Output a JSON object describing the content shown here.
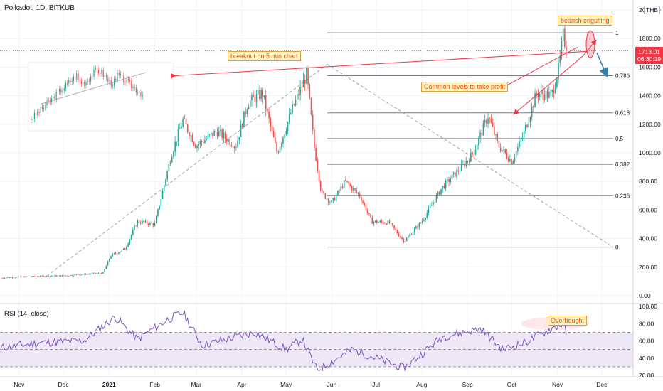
{
  "header": {
    "title": "Polkadot, 1D, BITKUB",
    "currency": "THB"
  },
  "price_tag": {
    "price": "1713.01",
    "countdown": "06:30:19"
  },
  "colors": {
    "up": "#26a69a",
    "down": "#ef5350",
    "fib_line": "#787b86",
    "rsi_line": "#7e57c2",
    "rsi_band": "#ede7f6",
    "annotation": "#f23645",
    "arrow_blue": "#2f7fa8"
  },
  "annotations": {
    "bearish_engulfing": "bearish engulfing",
    "breakout": "breakout on 5 min chart",
    "take_profit": "Common levels to take profit",
    "overbought": "Overbought"
  },
  "chart_data": [
    {
      "type": "candlestick",
      "title": "Polkadot, 1D, BITKUB",
      "x_tick_labels": [
        "Nov",
        "Dec",
        "2021",
        "Feb",
        "Mar",
        "Apr",
        "May",
        "Jun",
        "Jul",
        "Aug",
        "Sep",
        "Oct",
        "Nov",
        "Dec"
      ],
      "y_tick_labels": [
        "0.00",
        "200.00",
        "400.00",
        "600.00",
        "800.00",
        "1000.00",
        "1200.00",
        "1400.00",
        "1600.00",
        "1800.00",
        "2000.00"
      ],
      "ylim": [
        0,
        2000
      ],
      "last_price": 1713.01,
      "fib_levels": [
        {
          "ratio": "1",
          "price": 1840
        },
        {
          "ratio": "0.786",
          "price": 1540
        },
        {
          "ratio": "0.618",
          "price": 1280
        },
        {
          "ratio": "0.5",
          "price": 1100
        },
        {
          "ratio": "0.382",
          "price": 920
        },
        {
          "ratio": "0.236",
          "price": 700
        },
        {
          "ratio": "0",
          "price": 340
        }
      ],
      "close_path": [
        {
          "date": "2020-10-20",
          "close": 125
        },
        {
          "date": "2020-11-10",
          "close": 135
        },
        {
          "date": "2020-12-01",
          "close": 140
        },
        {
          "date": "2020-12-28",
          "close": 160
        },
        {
          "date": "2021-01-02",
          "close": 280
        },
        {
          "date": "2021-01-12",
          "close": 330
        },
        {
          "date": "2021-01-20",
          "close": 520
        },
        {
          "date": "2021-02-01",
          "close": 500
        },
        {
          "date": "2021-02-12",
          "close": 980
        },
        {
          "date": "2021-02-20",
          "close": 1230
        },
        {
          "date": "2021-03-01",
          "close": 1050
        },
        {
          "date": "2021-03-15",
          "close": 1150
        },
        {
          "date": "2021-03-28",
          "close": 1050
        },
        {
          "date": "2021-04-05",
          "close": 1350
        },
        {
          "date": "2021-04-15",
          "close": 1420
        },
        {
          "date": "2021-04-20",
          "close": 1200
        },
        {
          "date": "2021-04-25",
          "close": 1000
        },
        {
          "date": "2021-05-05",
          "close": 1300
        },
        {
          "date": "2021-05-15",
          "close": 1550
        },
        {
          "date": "2021-05-20",
          "close": 1050
        },
        {
          "date": "2021-05-25",
          "close": 720
        },
        {
          "date": "2021-06-01",
          "close": 650
        },
        {
          "date": "2021-06-10",
          "close": 800
        },
        {
          "date": "2021-06-20",
          "close": 700
        },
        {
          "date": "2021-06-28",
          "close": 520
        },
        {
          "date": "2021-07-10",
          "close": 510
        },
        {
          "date": "2021-07-20",
          "close": 380
        },
        {
          "date": "2021-08-01",
          "close": 520
        },
        {
          "date": "2021-08-15",
          "close": 760
        },
        {
          "date": "2021-08-28",
          "close": 900
        },
        {
          "date": "2021-09-05",
          "close": 1000
        },
        {
          "date": "2021-09-15",
          "close": 1260
        },
        {
          "date": "2021-09-22",
          "close": 1050
        },
        {
          "date": "2021-10-01",
          "close": 940
        },
        {
          "date": "2021-10-08",
          "close": 1100
        },
        {
          "date": "2021-10-18",
          "close": 1420
        },
        {
          "date": "2021-10-28",
          "close": 1400
        },
        {
          "date": "2021-11-02",
          "close": 1600
        },
        {
          "date": "2021-11-05",
          "close": 1830
        },
        {
          "date": "2021-11-07",
          "close": 1713
        }
      ]
    },
    {
      "type": "line",
      "title": "RSI (14, close)",
      "y_tick_labels": [
        "20.00",
        "40.00",
        "60.00",
        "80.00",
        "100.00"
      ],
      "ylim": [
        20,
        100
      ],
      "bands": {
        "upper": 70,
        "middle": 50,
        "lower": 30
      },
      "rsi_path": [
        {
          "date": "2020-10-20",
          "value": 52
        },
        {
          "date": "2020-11-15",
          "value": 58
        },
        {
          "date": "2020-12-15",
          "value": 60
        },
        {
          "date": "2021-01-05",
          "value": 88
        },
        {
          "date": "2021-01-20",
          "value": 62
        },
        {
          "date": "2021-02-10",
          "value": 85
        },
        {
          "date": "2021-02-20",
          "value": 93
        },
        {
          "date": "2021-03-05",
          "value": 55
        },
        {
          "date": "2021-04-10",
          "value": 70
        },
        {
          "date": "2021-05-01",
          "value": 50
        },
        {
          "date": "2021-05-12",
          "value": 62
        },
        {
          "date": "2021-05-22",
          "value": 26
        },
        {
          "date": "2021-06-15",
          "value": 50
        },
        {
          "date": "2021-07-20",
          "value": 28
        },
        {
          "date": "2021-08-15",
          "value": 65
        },
        {
          "date": "2021-09-10",
          "value": 74
        },
        {
          "date": "2021-09-25",
          "value": 50
        },
        {
          "date": "2021-10-10",
          "value": 58
        },
        {
          "date": "2021-10-25",
          "value": 72
        },
        {
          "date": "2021-11-05",
          "value": 80
        },
        {
          "date": "2021-11-07",
          "value": 70
        }
      ]
    }
  ]
}
